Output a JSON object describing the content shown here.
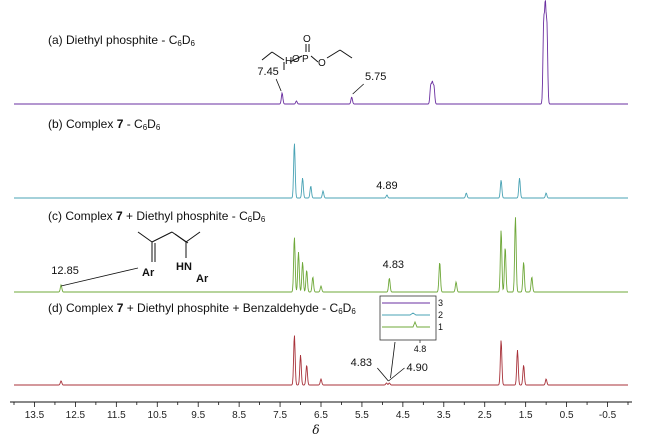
{
  "chart_data": {
    "type": "line",
    "chart_subtype": "stacked NMR spectra",
    "xlabel": "δ",
    "xlim": [
      14.0,
      -1.0
    ],
    "x_reversed": true,
    "xticks": [
      "13.5",
      "12.5",
      "11.5",
      "10.5",
      "9.5",
      "8.5",
      "7.5",
      "6.5",
      "5.5",
      "4.5",
      "3.5",
      "2.5",
      "1.5",
      "0.5",
      "-0.5"
    ],
    "grid": false,
    "series": [
      {
        "label_parts": [
          "(a) Diethyl phosphite - C",
          "6",
          "D",
          "6"
        ],
        "color": "#6a2fa0",
        "peaks": [
          {
            "x": 7.45,
            "h": 0.11
          },
          {
            "x": 7.1,
            "h": 0.03
          },
          {
            "x": 5.75,
            "h": 0.07
          },
          {
            "x": 3.82,
            "h": 0.18
          },
          {
            "x": 3.78,
            "h": 0.2
          },
          {
            "x": 3.74,
            "h": 0.17
          },
          {
            "x": 1.06,
            "h": 0.78
          },
          {
            "x": 1.02,
            "h": 0.92
          },
          {
            "x": 0.98,
            "h": 0.75
          }
        ],
        "annotations": [
          {
            "text": "7.45",
            "x": 7.45
          },
          {
            "text": "5.75",
            "x": 5.75
          }
        ]
      },
      {
        "label_parts": [
          "(b) Complex ",
          "7",
          " - C",
          "6",
          "D",
          "6"
        ],
        "color": "#4aa3b5",
        "peaks": [
          {
            "x": 7.15,
            "h": 0.55
          },
          {
            "x": 6.95,
            "h": 0.2
          },
          {
            "x": 6.75,
            "h": 0.12
          },
          {
            "x": 6.45,
            "h": 0.07
          },
          {
            "x": 4.89,
            "h": 0.03
          },
          {
            "x": 2.95,
            "h": 0.05
          },
          {
            "x": 2.1,
            "h": 0.18
          },
          {
            "x": 1.65,
            "h": 0.2
          },
          {
            "x": 1.0,
            "h": 0.05
          }
        ],
        "annotations": [
          {
            "text": "4.89",
            "x": 4.89
          }
        ]
      },
      {
        "label_parts": [
          "(c) Complex ",
          "7",
          " + Diethyl phosphite - C",
          "6",
          "D",
          "6"
        ],
        "color": "#6fa83a",
        "peaks": [
          {
            "x": 12.85,
            "h": 0.07
          },
          {
            "x": 7.15,
            "h": 0.55
          },
          {
            "x": 7.05,
            "h": 0.4
          },
          {
            "x": 6.95,
            "h": 0.3
          },
          {
            "x": 6.85,
            "h": 0.22
          },
          {
            "x": 6.7,
            "h": 0.15
          },
          {
            "x": 6.5,
            "h": 0.06
          },
          {
            "x": 4.83,
            "h": 0.14
          },
          {
            "x": 3.6,
            "h": 0.3
          },
          {
            "x": 3.2,
            "h": 0.1
          },
          {
            "x": 2.1,
            "h": 0.62
          },
          {
            "x": 2.0,
            "h": 0.45
          },
          {
            "x": 1.75,
            "h": 0.75
          },
          {
            "x": 1.55,
            "h": 0.3
          },
          {
            "x": 1.35,
            "h": 0.15
          }
        ],
        "annotations": [
          {
            "text": "12.85",
            "x": 12.85
          },
          {
            "text": "4.83",
            "x": 4.83
          }
        ]
      },
      {
        "label_parts": [
          "(d) Complex ",
          "7",
          " + Diethyl phosphite + Benzaldehyde - C",
          "6",
          "D",
          "6"
        ],
        "color": "#a8323a",
        "peaks": [
          {
            "x": 12.85,
            "h": 0.04
          },
          {
            "x": 7.15,
            "h": 0.5
          },
          {
            "x": 7.0,
            "h": 0.3
          },
          {
            "x": 6.85,
            "h": 0.2
          },
          {
            "x": 6.5,
            "h": 0.06
          },
          {
            "x": 4.9,
            "h": 0.02
          },
          {
            "x": 4.83,
            "h": 0.02
          },
          {
            "x": 2.1,
            "h": 0.45
          },
          {
            "x": 1.7,
            "h": 0.35
          },
          {
            "x": 1.55,
            "h": 0.2
          },
          {
            "x": 1.0,
            "h": 0.06
          }
        ],
        "annotations": [
          {
            "text": "4.83",
            "x": 4.83
          },
          {
            "text": "4.90",
            "x": 4.9
          }
        ]
      }
    ],
    "inset": {
      "xtick": "4.8",
      "labels": [
        "3",
        "2",
        "1"
      ],
      "colors": [
        "#6a2fa0",
        "#4aa3b5",
        "#6fa83a"
      ]
    },
    "structure_labels": {
      "a": [
        "O",
        "P",
        "H",
        "O",
        "O"
      ],
      "c": [
        "Ar",
        "HN",
        "Ar"
      ]
    }
  }
}
